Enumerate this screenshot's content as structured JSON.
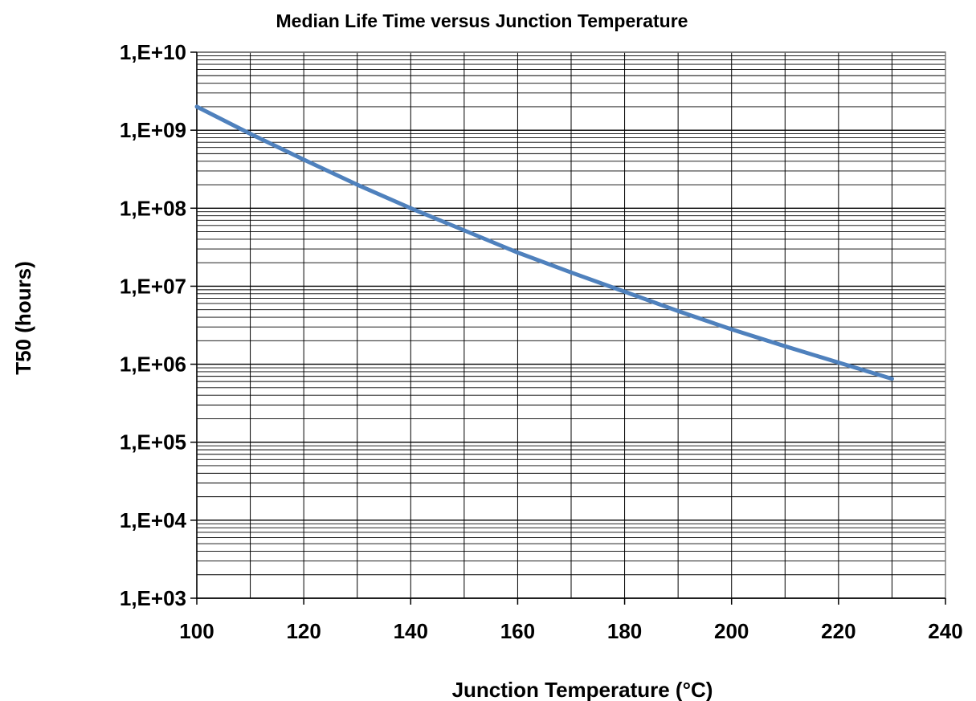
{
  "chart_data": {
    "type": "line",
    "title": "Median Life Time versus Junction Temperature",
    "xlabel": "Junction Temperature (°C)",
    "ylabel": "T50 (hours)",
    "xlim": [
      100,
      240
    ],
    "ylim": [
      1000,
      10000000000
    ],
    "y_scale": "log",
    "grid": true,
    "x_ticks": [
      100,
      120,
      140,
      160,
      180,
      200,
      220,
      240
    ],
    "x_tick_labels": [
      "100",
      "120",
      "140",
      "160",
      "180",
      "200",
      "220",
      "240"
    ],
    "y_ticks": [
      1000,
      10000,
      100000,
      1000000,
      10000000,
      100000000,
      1000000000,
      10000000000
    ],
    "y_tick_labels": [
      "1,E+03",
      "1,E+04",
      "1,E+05",
      "1,E+06",
      "1,E+07",
      "1,E+08",
      "1,E+09",
      "1,E+10"
    ],
    "series": [
      {
        "color": "#4f81bd",
        "x": [
          100,
          110,
          120,
          130,
          140,
          150,
          160,
          170,
          180,
          190,
          200,
          210,
          220,
          230
        ],
        "y": [
          2000000000,
          900000000,
          420000000,
          200000000,
          100000000,
          52000000,
          27000000,
          15000000,
          8500000,
          4800000,
          2800000,
          1700000,
          1050000,
          650000
        ]
      }
    ]
  }
}
